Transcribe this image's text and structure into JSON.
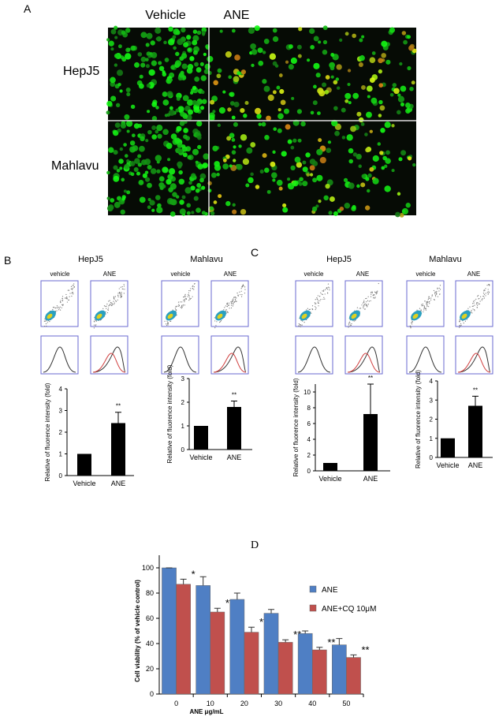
{
  "panel_labels": {
    "a": "A",
    "b": "B",
    "c": "C",
    "d": "D"
  },
  "panel_a": {
    "columns": [
      "Vehicle",
      "ANE"
    ],
    "rows": [
      "HepJ5",
      "Mahlavu"
    ]
  },
  "panel_b": {
    "cells": [
      "HepJ5",
      "Mahlavu"
    ],
    "conditions": [
      "vehicle",
      "ANE",
      "vehicle",
      "ANE"
    ]
  },
  "panel_c": {
    "cells": [
      "HepJ5",
      "Mahlavu"
    ],
    "conditions": [
      "vehicle",
      "ANE",
      "vehicle",
      "ANE"
    ]
  },
  "chart_data": [
    {
      "type": "bar",
      "ylabel": "Relative of fluorence intensity (fold)",
      "categories": [
        "Vehicle",
        "ANE"
      ],
      "values": [
        1,
        2.42
      ],
      "errors": [
        0,
        0.5
      ],
      "annotation": "**",
      "color": "#000000",
      "ylim": [
        0,
        4
      ],
      "yticks": [
        0,
        1,
        2,
        3,
        4
      ]
    },
    {
      "type": "bar",
      "ylabel": "Relative of fluorence intensity (fold)",
      "categories": [
        "Vehicle",
        "ANE"
      ],
      "values": [
        1,
        1.8
      ],
      "errors": [
        0,
        0.25
      ],
      "annotation": "**",
      "color": "#000000",
      "ylim": [
        0,
        3
      ],
      "yticks": [
        0,
        1,
        2,
        3
      ]
    },
    {
      "type": "bar",
      "ylabel": "Relative of fluorence intensity (fold)",
      "categories": [
        "Vehicle",
        "ANE"
      ],
      "values": [
        1,
        7.2
      ],
      "errors": [
        0,
        3.8
      ],
      "annotation": "**",
      "color": "#000000",
      "ylim": [
        0,
        11
      ],
      "yticks": [
        0,
        2,
        4,
        6,
        8,
        10
      ]
    },
    {
      "type": "bar",
      "ylabel": "Relative of fluorence intensity (fold)",
      "categories": [
        "Vehicle",
        "ANE"
      ],
      "values": [
        1,
        2.7
      ],
      "errors": [
        0,
        0.5
      ],
      "annotation": "**",
      "color": "#000000",
      "ylim": [
        0,
        4
      ],
      "yticks": [
        0,
        1,
        2,
        3,
        4
      ]
    },
    {
      "type": "grouped-bar",
      "xlabel": "ANE μg/mL",
      "ylabel": "Cell viability (% of vehicle control)",
      "categories": [
        "0",
        "10",
        "20",
        "30",
        "40",
        "50"
      ],
      "series": [
        {
          "name": "ANE",
          "color": "#4f7fc4",
          "values": [
            100,
            86,
            75,
            64,
            48,
            39
          ],
          "errors": [
            0,
            7,
            5,
            3,
            2,
            5
          ]
        },
        {
          "name": "ANE+CQ 10μM",
          "color": "#c0504d",
          "values": [
            87,
            65,
            49,
            41,
            35,
            29
          ],
          "errors": [
            4,
            3,
            4,
            2,
            2,
            2
          ],
          "significance": [
            "*",
            "**",
            "**",
            "**",
            "**",
            "**"
          ]
        }
      ],
      "ylim": [
        0,
        110
      ],
      "yticks": [
        0,
        20,
        40,
        60,
        80,
        100
      ]
    }
  ]
}
